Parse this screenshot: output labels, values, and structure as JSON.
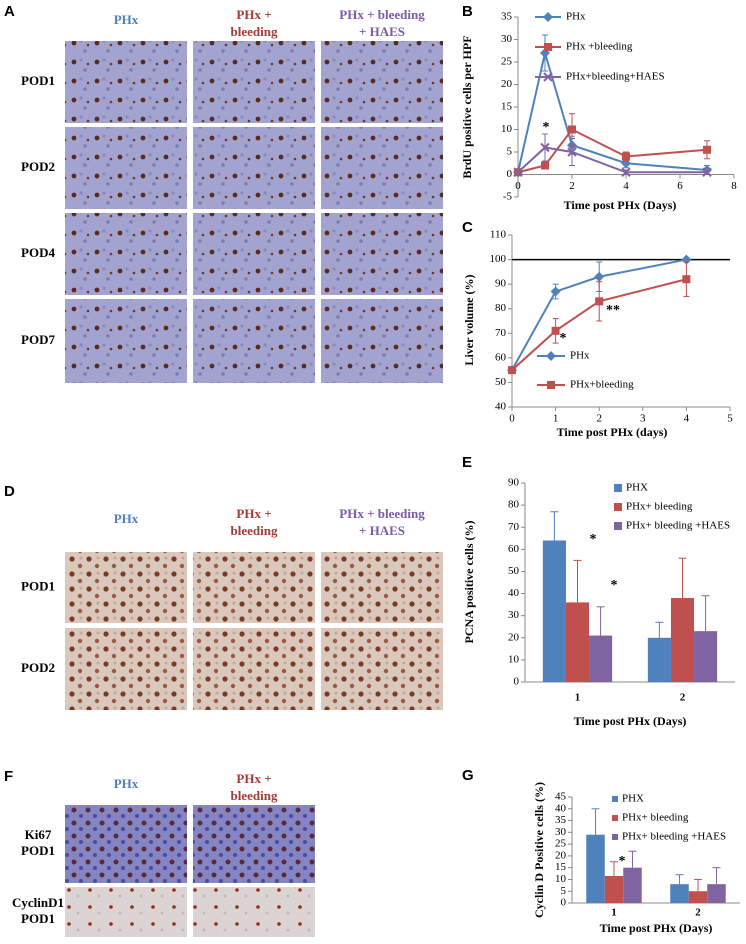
{
  "figure": {
    "A": {
      "label": "A",
      "columns": [
        [
          "PHx"
        ],
        [
          "PHx +",
          "bleeding"
        ],
        [
          "PHx + bleeding",
          "+ HAES"
        ]
      ],
      "rows": [
        [
          "POD1"
        ],
        [
          "POD2"
        ],
        [
          "POD4"
        ],
        [
          "POD7"
        ]
      ]
    },
    "D": {
      "label": "D",
      "columns": [
        [
          "PHx"
        ],
        [
          "PHx +",
          "bleeding"
        ],
        [
          "PHx + bleeding",
          "+ HAES"
        ]
      ],
      "rows": [
        [
          "POD1"
        ],
        [
          "POD2"
        ]
      ]
    },
    "F": {
      "label": "F",
      "columns": [
        [
          "PHx"
        ],
        [
          "PHx +",
          "bleeding"
        ]
      ],
      "rows": [
        [
          "Ki67",
          "POD1"
        ],
        [
          "CyclinD1",
          "POD1"
        ]
      ]
    }
  },
  "chart_data": [
    {
      "type": "line",
      "panel": "B",
      "y_label": "BrdU positive cells per HPF",
      "x_label": "Time post PHx (Days)",
      "x": [
        0,
        1,
        2,
        4,
        7
      ],
      "xlim": [
        0,
        8
      ],
      "xticks": [
        0,
        2,
        4,
        6,
        8
      ],
      "ylim": [
        -5,
        35
      ],
      "yticks": [
        -5,
        0,
        5,
        10,
        15,
        20,
        25,
        30,
        35
      ],
      "series": [
        {
          "name": "PHx",
          "color": "#4f81bd",
          "marker": "diamond",
          "values": [
            0.5,
            27,
            6.5,
            2.5,
            1
          ],
          "errors": [
            null,
            4,
            2,
            1,
            1
          ]
        },
        {
          "name": "PHx +bleeding",
          "color": "#c0504d",
          "marker": "square",
          "values": [
            0.5,
            2,
            10,
            4,
            5.5
          ],
          "errors": [
            null,
            0.5,
            3.5,
            1,
            2
          ]
        },
        {
          "name": "PHx+bleeding+HAES",
          "color": "#8064a2",
          "marker": "x",
          "values": [
            0.5,
            6,
            5,
            0.5,
            0.5
          ],
          "errors": [
            null,
            3,
            3,
            0.5,
            0.5
          ]
        }
      ],
      "annotations": [
        "*"
      ]
    },
    {
      "type": "line",
      "panel": "C",
      "y_label": "Liver volume (%)",
      "x_label": "Time post PHx (days)",
      "x": [
        0,
        1,
        2,
        4
      ],
      "xlim": [
        0,
        5
      ],
      "xticks": [
        0,
        1,
        2,
        3,
        4,
        5
      ],
      "ylim": [
        40,
        110
      ],
      "yticks": [
        40,
        50,
        60,
        70,
        80,
        90,
        100,
        110
      ],
      "reference_line": 100,
      "series": [
        {
          "name": "PHx",
          "color": "#4f81bd",
          "marker": "diamond",
          "values": [
            55,
            87,
            93,
            100
          ],
          "errors": [
            null,
            3,
            6,
            null
          ]
        },
        {
          "name": "PHx+bleeding",
          "color": "#c0504d",
          "marker": "square",
          "values": [
            55,
            71,
            83,
            92
          ],
          "errors": [
            null,
            5,
            8,
            7
          ]
        }
      ],
      "annotations": [
        "*",
        "**"
      ]
    },
    {
      "type": "bar",
      "panel": "E",
      "y_label": "PCNA positive cells (%)",
      "x_label": "Time post PHx (Days)",
      "categories": [
        "1",
        "2"
      ],
      "ylim": [
        0,
        90
      ],
      "yticks": [
        0,
        10,
        20,
        30,
        40,
        50,
        60,
        70,
        80,
        90
      ],
      "series": [
        {
          "name": "PHX",
          "color": "#4f81bd",
          "values": [
            64,
            20
          ],
          "errors": [
            13,
            7
          ]
        },
        {
          "name": "PHx+ bleeding",
          "color": "#c0504d",
          "values": [
            36,
            38
          ],
          "errors": [
            19,
            18
          ]
        },
        {
          "name": "PHx+ bleeding +HAES",
          "color": "#8064a2",
          "values": [
            21,
            23
          ],
          "errors": [
            13,
            16
          ]
        }
      ],
      "annotations": [
        "*",
        "*"
      ]
    },
    {
      "type": "bar",
      "panel": "G",
      "y_label": "Cyclin D Positive cells (%)",
      "x_label": "Time post PHx (Days)",
      "categories": [
        "1",
        "2"
      ],
      "ylim": [
        0,
        45
      ],
      "yticks": [
        0,
        5,
        10,
        15,
        20,
        25,
        30,
        35,
        40,
        45
      ],
      "series": [
        {
          "name": "PHX",
          "color": "#4f81bd",
          "values": [
            29,
            8
          ],
          "errors": [
            11,
            4
          ]
        },
        {
          "name": "PHx+ bleeding",
          "color": "#c0504d",
          "values": [
            11.5,
            5
          ],
          "errors": [
            6,
            5
          ]
        },
        {
          "name": "PHx+ bleeding +HAES",
          "color": "#8064a2",
          "values": [
            15,
            8
          ],
          "errors": [
            7,
            7
          ]
        }
      ],
      "annotations": [
        "*"
      ]
    }
  ]
}
